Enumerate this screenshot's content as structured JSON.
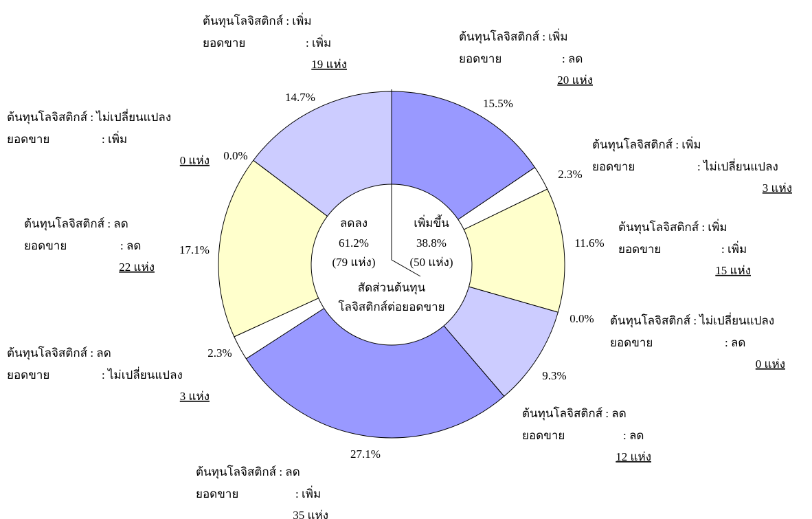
{
  "chart_data": {
    "type": "pie",
    "values": [
      15.5,
      2.3,
      11.6,
      0.0,
      9.3,
      27.1,
      2.3,
      17.1,
      0.0,
      14.7
    ],
    "value_labels": [
      "15.5%",
      "2.3%",
      "11.6%",
      "0.0%",
      "9.3%",
      "27.1%",
      "2.3%",
      "17.1%",
      "0.0%",
      "14.7%"
    ],
    "colors": [
      "#9999ff",
      "#ffffff",
      "#ffffcc",
      "#ccccff",
      "#ccccff",
      "#9999ff",
      "#ffffff",
      "#ffffcc",
      "#ffffcc",
      "#ccccff"
    ],
    "slice_labels": [
      {
        "cost": "ต้นทุนโลจิสติกส์ : เพิ่ม",
        "sales_key": "ยอดขาย",
        "sales_value": ": ลด",
        "count": "20 แห่ง"
      },
      {
        "cost": "ต้นทุนโลจิสติกส์ : เพิ่ม",
        "sales_key": "ยอดขาย",
        "sales_value": ": ไม่เปลี่ยนแปลง",
        "count": "3 แห่ง"
      },
      {
        "cost": "ต้นทุนโลจิสติกส์ : เพิ่ม",
        "sales_key": "ยอดขาย",
        "sales_value": ": เพิ่ม",
        "count": "15 แห่ง"
      },
      {
        "cost": "ต้นทุนโลจิสติกส์ : ไม่เปลี่ยนแปลง",
        "sales_key": "ยอดขาย",
        "sales_value": ": ลด",
        "count": "0 แห่ง"
      },
      {
        "cost": "ต้นทุนโลจิสติกส์ : ลด",
        "sales_key": "ยอดขาย",
        "sales_value": ": ลด",
        "count": "12 แห่ง"
      },
      {
        "cost": "ต้นทุนโลจิสติกส์ : ลด",
        "sales_key": "ยอดขาย",
        "sales_value": ": เพิ่ม",
        "count": "35 แห่ง"
      },
      {
        "cost": "ต้นทุนโลจิสติกส์ : ลด",
        "sales_key": "ยอดขาย",
        "sales_value": ": ไม่เปลี่ยนแปลง",
        "count": "3 แห่ง"
      },
      {
        "cost": "ต้นทุนโลจิสติกส์ : ลด",
        "sales_key": "ยอดขาย",
        "sales_value": ": ลด",
        "count": "22 แห่ง"
      },
      {
        "cost": "ต้นทุนโลจิสติกส์ : ไม่เปลี่ยนแปลง",
        "sales_key": "ยอดขาย",
        "sales_value": ": เพิ่ม",
        "count": "0 แห่ง"
      },
      {
        "cost": "ต้นทุนโลจิสติกส์ : เพิ่ม",
        "sales_key": "ยอดขาย",
        "sales_value": ": เพิ่ม",
        "count": "19 แห่ง"
      }
    ],
    "center": {
      "left": [
        "ลดลง",
        "61.2%",
        "(79 แห่ง)"
      ],
      "right": [
        "เพิ่มขึ้น",
        "38.8%",
        "(50 แห่ง)"
      ],
      "caption": [
        "สัดส่วนต้นทุน",
        "โลจิสติกส์ต่อยอดขาย"
      ]
    }
  }
}
